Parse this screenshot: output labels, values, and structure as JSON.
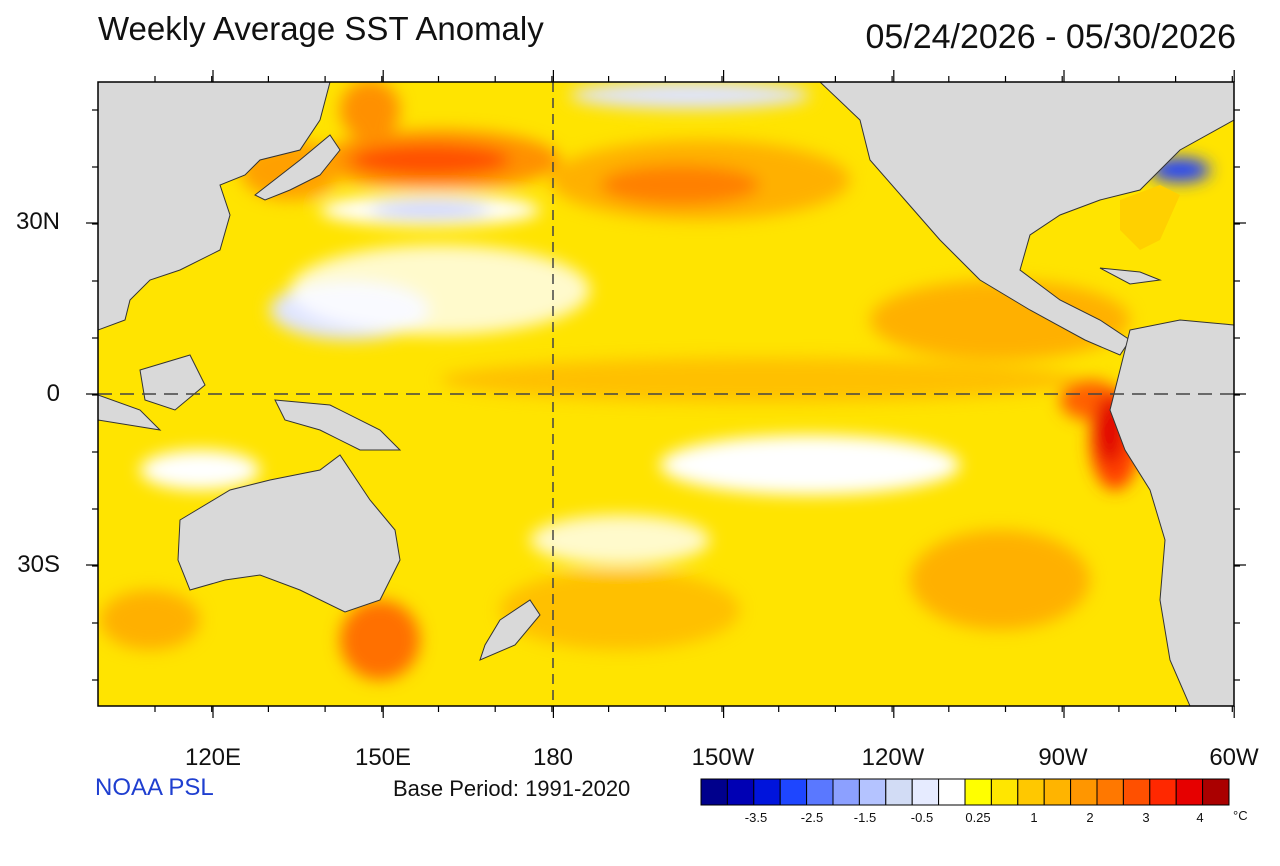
{
  "title": "Weekly Average SST Anomaly",
  "date_range": "05/24/2026 - 05/30/2026",
  "organization": "NOAA PSL",
  "base_period": "Base Period: 1991-2020",
  "lat_labels": [
    "30N",
    "0",
    "30S"
  ],
  "lon_labels": [
    "120E",
    "150E",
    "180",
    "150W",
    "120W",
    "90W",
    "60W"
  ],
  "colorbar": {
    "unit": "°C",
    "tick_labels": [
      "-3.5",
      "-2.5",
      "-1.5",
      "-0.5",
      "0.25",
      "1",
      "2",
      "3",
      "4"
    ],
    "colors": [
      "#00008c",
      "#0000b4",
      "#0014dc",
      "#1e46ff",
      "#5a78ff",
      "#8ca0ff",
      "#b4c3ff",
      "#d2dcf5",
      "#e6ebff",
      "#ffffff",
      "#ffff00",
      "#ffe600",
      "#ffc800",
      "#ffb400",
      "#ff9600",
      "#ff7800",
      "#ff5000",
      "#ff2800",
      "#e60000",
      "#aa0000"
    ]
  },
  "colors": {
    "land": "#d9d9d9",
    "ocean_base": "#ffe000",
    "brand_text": "#1f3fd0"
  }
}
